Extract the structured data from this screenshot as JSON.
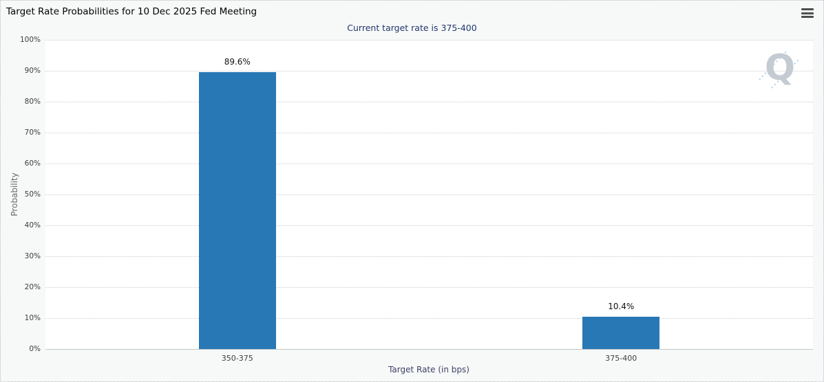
{
  "header": {
    "menu_icon": "hamburger"
  },
  "watermark": {
    "letter": "Q"
  },
  "colors": {
    "bar": "#2878b5",
    "subtitle": "#20386e",
    "page_background": "#f7f8f8",
    "plot_background": "#ffffff"
  },
  "chart_data": {
    "type": "bar",
    "title": "Target Rate Probabilities for 10 Dec 2025 Fed Meeting",
    "subtitle": "Current target rate is 375-400",
    "categories": [
      "350-375",
      "375-400"
    ],
    "values": [
      89.6,
      10.4
    ],
    "value_labels": [
      "89.6%",
      "10.4%"
    ],
    "xlabel": "Target Rate (in bps)",
    "ylabel": "Probability",
    "ylim": [
      0,
      100
    ],
    "yticks": [
      0,
      10,
      20,
      30,
      40,
      50,
      60,
      70,
      80,
      90,
      100
    ],
    "ytick_labels": [
      "0%",
      "10%",
      "20%",
      "30%",
      "40%",
      "50%",
      "60%",
      "70%",
      "80%",
      "90%",
      "100%"
    ],
    "grid": "dotted-horizontal",
    "legend": "none",
    "bar_color": "#2878b5"
  }
}
